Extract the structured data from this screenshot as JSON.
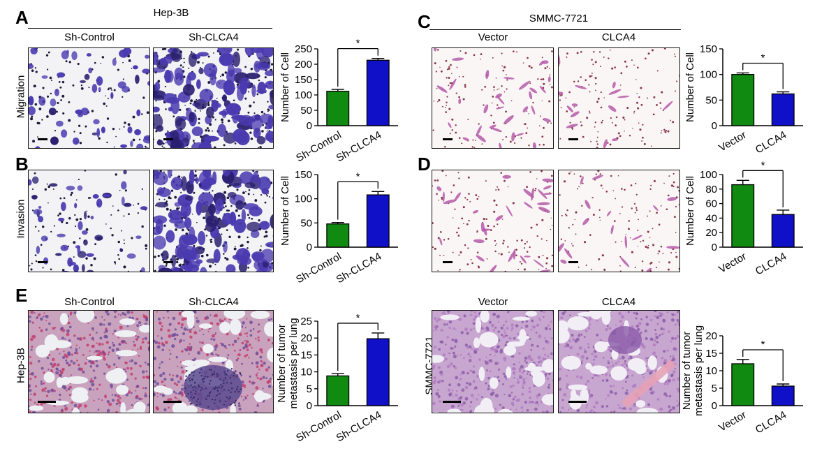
{
  "panel_letters": [
    "A",
    "B",
    "C",
    "D",
    "E"
  ],
  "groups": {
    "left_title": "Hep-3B",
    "right_title": "SMMC-7721",
    "left_col1": "Sh-Control",
    "left_col2": "Sh-CLCA4",
    "right_col1": "Vector",
    "right_col2": "CLCA4"
  },
  "row_labels": {
    "migration": "Migration",
    "invasion": "Invasion",
    "hep3b": "Hep-3B",
    "smmc": "SMMC-7721"
  },
  "colors": {
    "control_bar": "#118a11",
    "treatment_bar": "#1010c8",
    "crystal_violet": "#3b2a9e",
    "he_pink": "#d36a9a",
    "he_purple": "#7a4f9a"
  },
  "chart_data": [
    {
      "id": "A",
      "type": "bar",
      "categories": [
        "Sh-Control",
        "Sh-CLCA4"
      ],
      "values": [
        112,
        213
      ],
      "errors": [
        6,
        6
      ],
      "ylabel": "Number of Cell",
      "ylim": [
        0,
        250
      ],
      "yticks": [
        "0",
        "50",
        "100",
        "150",
        "200",
        "250"
      ],
      "significance": "*"
    },
    {
      "id": "B",
      "type": "bar",
      "categories": [
        "Sh-Control",
        "Sh-CLCA4"
      ],
      "values": [
        48,
        108
      ],
      "errors": [
        3,
        7
      ],
      "ylabel": "Number of Cell",
      "ylim": [
        0,
        150
      ],
      "yticks": [
        "0",
        "50",
        "100",
        "150"
      ],
      "significance": "*"
    },
    {
      "id": "C",
      "type": "bar",
      "categories": [
        "Vector",
        "CLCA4"
      ],
      "values": [
        100,
        62
      ],
      "errors": [
        3,
        4
      ],
      "ylabel": "Number of Cell",
      "ylim": [
        0,
        150
      ],
      "yticks": [
        "0",
        "50",
        "100",
        "150"
      ],
      "significance": "*"
    },
    {
      "id": "D",
      "type": "bar",
      "categories": [
        "Vector",
        "CLCA4"
      ],
      "values": [
        86,
        45
      ],
      "errors": [
        6,
        6
      ],
      "ylabel": "Number of Cell",
      "ylim": [
        0,
        100
      ],
      "yticks": [
        "0",
        "20",
        "40",
        "60",
        "80",
        "100"
      ],
      "significance": "*"
    },
    {
      "id": "E-left",
      "type": "bar",
      "categories": [
        "Sh-Control",
        "Sh-CLCA4"
      ],
      "values": [
        8.8,
        19.8
      ],
      "errors": [
        0.7,
        1.7
      ],
      "ylabel": "Number of tumor metastasis per lung",
      "ylim": [
        0,
        25
      ],
      "yticks": [
        "0",
        "5",
        "10",
        "15",
        "20",
        "25"
      ],
      "significance": "*"
    },
    {
      "id": "E-right",
      "type": "bar",
      "categories": [
        "Vector",
        "CLCA4"
      ],
      "values": [
        12,
        5.6
      ],
      "errors": [
        1.2,
        0.6
      ],
      "ylabel": "Number of tumor metastasis per lung",
      "ylim": [
        0,
        20
      ],
      "yticks": [
        "0",
        "5",
        "10",
        "15",
        "20"
      ],
      "significance": "*"
    }
  ]
}
